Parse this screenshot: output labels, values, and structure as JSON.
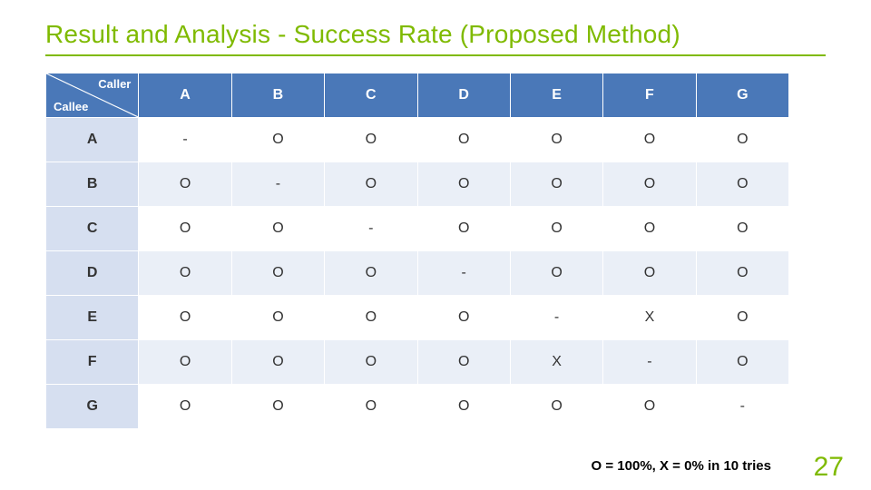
{
  "title": "Result and Analysis - Success Rate (Proposed Method)",
  "title_color": "#7fba00",
  "underline_color": "#7fba00",
  "legend": "O = 100%, X = 0%  in 10 tries",
  "page_number": "27",
  "page_number_color": "#7fba00",
  "table": {
    "header_bg": "#4a78b8",
    "header_fg": "#ffffff",
    "row_header_bg": "#d6dff0",
    "row_header_fg": "#333333",
    "cell_bg_odd": "#ffffff",
    "cell_bg_even": "#eaeff7",
    "cell_fg": "#333333",
    "border_color": "#ffffff",
    "corner": {
      "top_label": "Caller",
      "bottom_label": "Callee"
    },
    "columns": [
      "A",
      "B",
      "C",
      "D",
      "E",
      "F",
      "G"
    ],
    "rows": [
      {
        "label": "A",
        "cells": [
          "-",
          "O",
          "O",
          "O",
          "O",
          "O",
          "O"
        ]
      },
      {
        "label": "B",
        "cells": [
          "O",
          "-",
          "O",
          "O",
          "O",
          "O",
          "O"
        ]
      },
      {
        "label": "C",
        "cells": [
          "O",
          "O",
          "-",
          "O",
          "O",
          "O",
          "O"
        ]
      },
      {
        "label": "D",
        "cells": [
          "O",
          "O",
          "O",
          "-",
          "O",
          "O",
          "O"
        ]
      },
      {
        "label": "E",
        "cells": [
          "O",
          "O",
          "O",
          "O",
          "-",
          "X",
          "O"
        ]
      },
      {
        "label": "F",
        "cells": [
          "O",
          "O",
          "O",
          "O",
          "X",
          "-",
          "O"
        ]
      },
      {
        "label": "G",
        "cells": [
          "O",
          "O",
          "O",
          "O",
          "O",
          "O",
          "-"
        ]
      }
    ]
  }
}
